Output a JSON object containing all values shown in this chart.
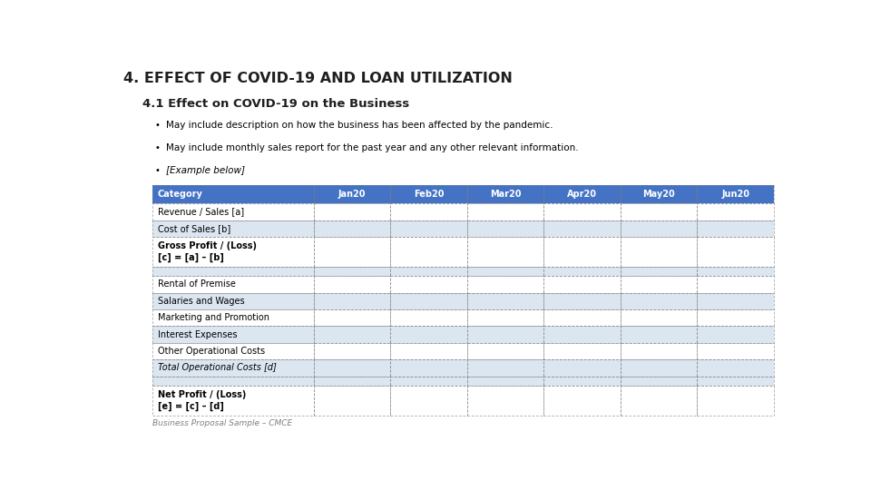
{
  "title": "4. EFFECT OF COVID-19 AND LOAN UTILIZATION",
  "subtitle": "4.1 Effect on COVID-19 on the Business",
  "bullets": [
    "May include description on how the business has been affected by the pandemic.",
    "May include monthly sales report for the past year and any other relevant information.",
    "[Example below]"
  ],
  "table_header": [
    "Category",
    "Jan 20",
    "Feb 20",
    "Mar 20",
    "Apr 20",
    "May 20",
    "Jun 20"
  ],
  "table_rows": [
    [
      "Revenue / Sales [a]",
      "",
      "",
      "",
      "",
      "",
      ""
    ],
    [
      "Cost of Sales [b]",
      "",
      "",
      "",
      "",
      "",
      ""
    ],
    [
      "Gross Profit / (Loss)\n[c] = [a] – [b]",
      "",
      "",
      "",
      "",
      "",
      ""
    ],
    [
      "",
      "",
      "",
      "",
      "",
      "",
      ""
    ],
    [
      "Rental of Premise",
      "",
      "",
      "",
      "",
      "",
      ""
    ],
    [
      "Salaries and Wages",
      "",
      "",
      "",
      "",
      "",
      ""
    ],
    [
      "Marketing and Promotion",
      "",
      "",
      "",
      "",
      "",
      ""
    ],
    [
      "Interest Expenses",
      "",
      "",
      "",
      "",
      "",
      ""
    ],
    [
      "Other Operational Costs",
      "",
      "",
      "",
      "",
      "",
      ""
    ],
    [
      "Total Operational Costs [d]",
      "",
      "",
      "",
      "",
      "",
      ""
    ],
    [
      "",
      "",
      "",
      "",
      "",
      "",
      ""
    ],
    [
      "Net Profit / (Loss)\n[e] = [c] – [d]",
      "",
      "",
      "",
      "",
      "",
      ""
    ]
  ],
  "row_bgs": [
    "#FFFFFF",
    "#DCE6F1",
    "#FFFFFF",
    "#DCE6F1",
    "#FFFFFF",
    "#DCE6F1",
    "#FFFFFF",
    "#DCE6F1",
    "#FFFFFF",
    "#DCE6F1",
    "#DCE6F1",
    "#FFFFFF"
  ],
  "italic_rows": [
    9
  ],
  "bold_rows": [
    2,
    11
  ],
  "header_bg": "#4472C4",
  "header_fg": "#FFFFFF",
  "footer": "Business Proposal Sample – CMCE",
  "bg_color": "#FFFFFF",
  "title_color": "#1F1F1F",
  "subtitle_color": "#1F1F1F"
}
